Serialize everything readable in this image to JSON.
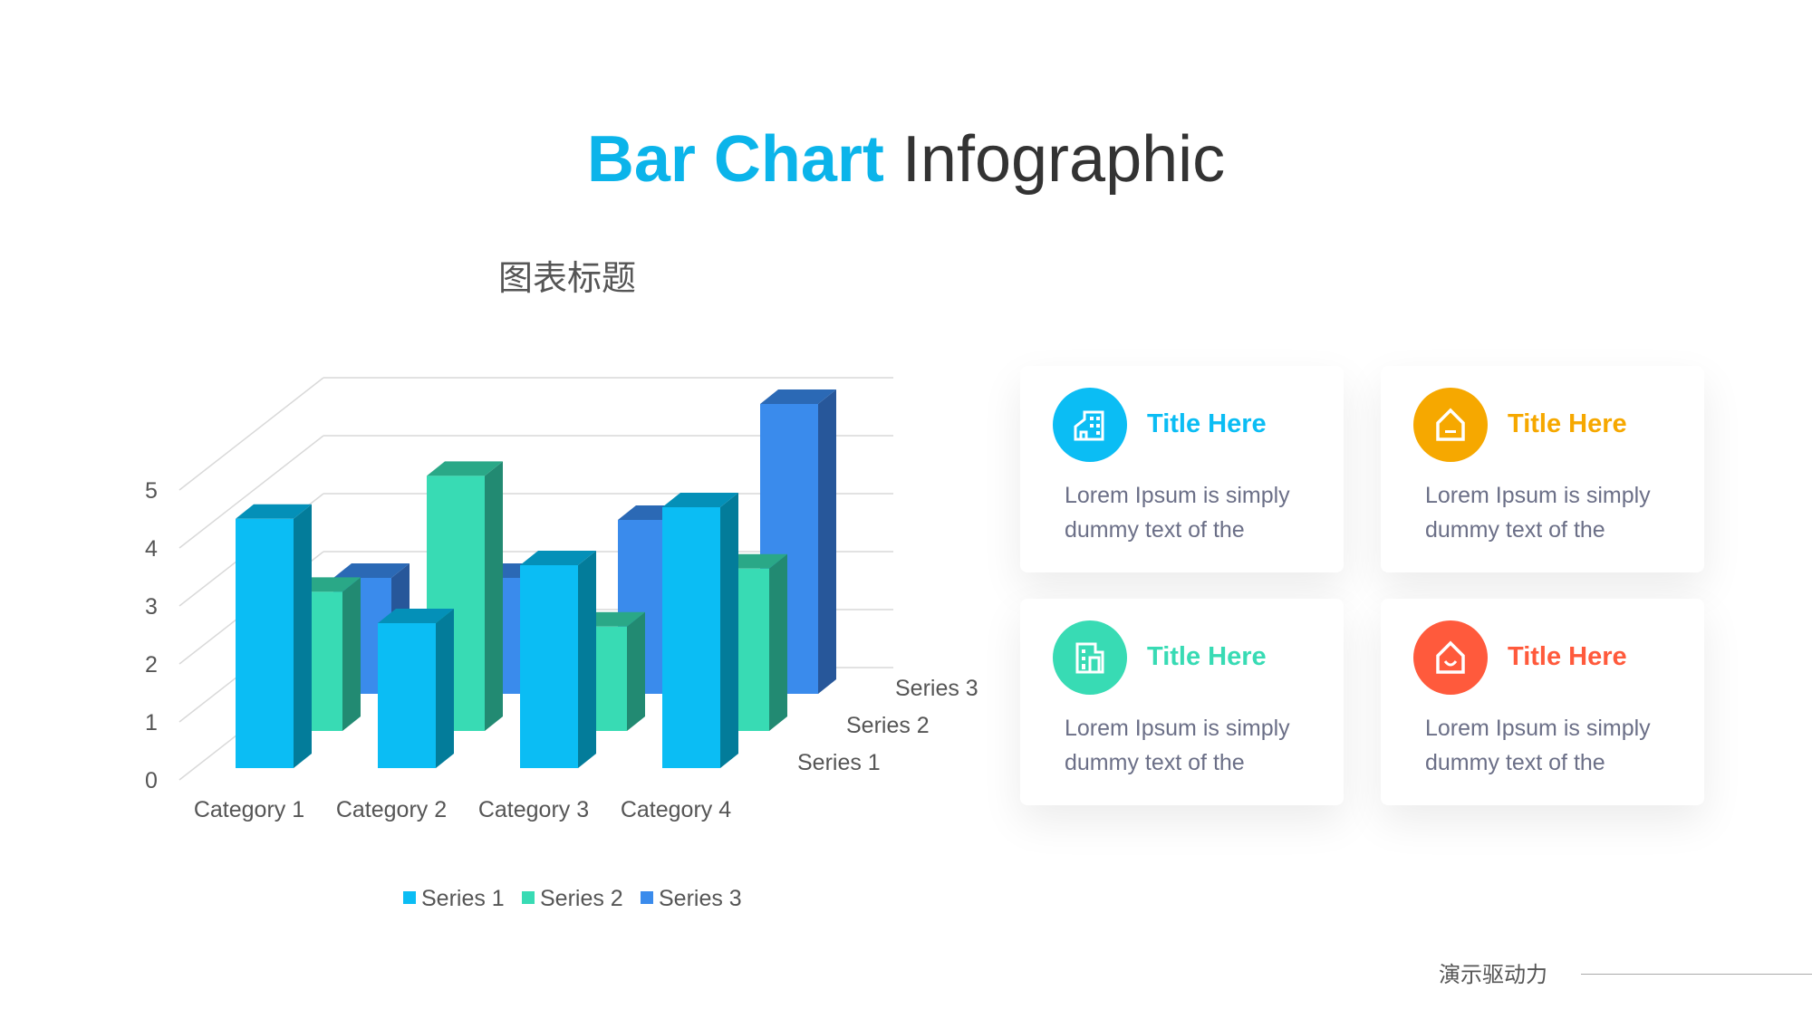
{
  "title": {
    "accent": "Bar Chart",
    "rest": " Infographic"
  },
  "chart_data": {
    "type": "bar",
    "subtype": "3d-clustered-depth",
    "title": "图表标题",
    "categories": [
      "Category 1",
      "Category 2",
      "Category 3",
      "Category 4"
    ],
    "series": [
      {
        "name": "Series 1",
        "values": [
          4.3,
          2.5,
          3.5,
          4.5
        ],
        "color": "#0BBDF4"
      },
      {
        "name": "Series 2",
        "values": [
          2.4,
          4.4,
          1.8,
          2.8
        ],
        "color": "#38DBB4"
      },
      {
        "name": "Series 3",
        "values": [
          2,
          2,
          3,
          5
        ],
        "color": "#3A8BEC"
      }
    ],
    "yticks": [
      "0",
      "1",
      "2",
      "3",
      "4",
      "5"
    ],
    "ylim": [
      0,
      5
    ],
    "grid": true,
    "legend": "bottom"
  },
  "cards": [
    {
      "title": "Title Here",
      "body": "Lorem Ipsum is simply dummy text of the",
      "color": "#0BBDF4",
      "icon": "building-icon"
    },
    {
      "title": "Title Here",
      "body": "Lorem Ipsum is simply dummy text of the",
      "color": "#F6A800",
      "icon": "home-icon"
    },
    {
      "title": "Title Here",
      "body": "Lorem Ipsum is simply dummy text of the",
      "color": "#38DBB4",
      "icon": "office-icon"
    },
    {
      "title": "Title Here",
      "body": "Lorem Ipsum is simply dummy text of the",
      "color": "#FF5A3C",
      "icon": "smile-house-icon"
    }
  ],
  "footer": "演示驱动力"
}
